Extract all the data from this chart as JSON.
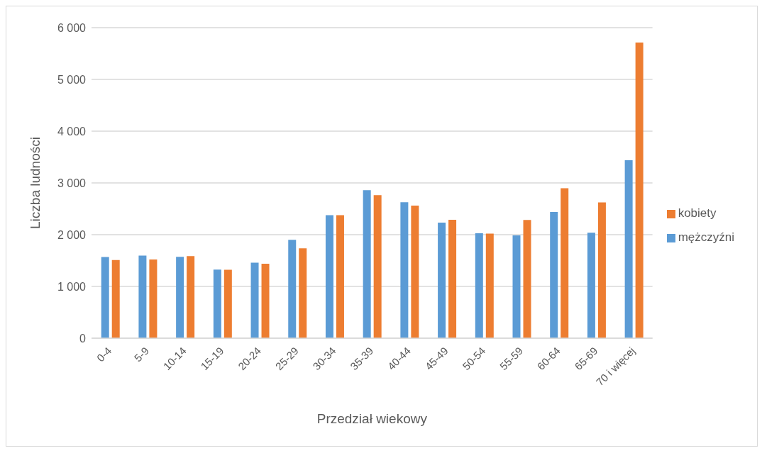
{
  "chart_data": {
    "type": "bar",
    "xlabel": "Przedział wiekowy",
    "ylabel": "Liczba ludności",
    "categories": [
      "0-4",
      "5-9",
      "10-14",
      "15-19",
      "20-24",
      "25-29",
      "30-34",
      "35-39",
      "40-44",
      "45-49",
      "50-54",
      "55-59",
      "60-64",
      "65-69",
      "70 i więcej"
    ],
    "series": [
      {
        "name": "mężczyźni",
        "color": "#5b9bd5",
        "values": [
          1570,
          1595,
          1572,
          1326,
          1460,
          1902,
          2377,
          2860,
          2628,
          2233,
          2028,
          1986,
          2437,
          2037,
          3437
        ]
      },
      {
        "name": "kobiety",
        "color": "#ed7d31",
        "values": [
          1510,
          1521,
          1586,
          1321,
          1437,
          1735,
          2377,
          2763,
          2563,
          2288,
          2019,
          2284,
          2898,
          2623,
          5712
        ]
      }
    ],
    "ylim": [
      0,
      6000
    ],
    "yticks": [
      0,
      {
        "value": 1000,
        "label": "1 000"
      },
      {
        "value": 2000,
        "label": "2 000"
      },
      {
        "value": 3000,
        "label": "3 000"
      },
      {
        "value": 4000,
        "label": "4 000"
      },
      {
        "value": 5000,
        "label": "5 000"
      },
      {
        "value": 6000,
        "label": "6 000"
      }
    ],
    "grid": "y",
    "legend": "right"
  }
}
